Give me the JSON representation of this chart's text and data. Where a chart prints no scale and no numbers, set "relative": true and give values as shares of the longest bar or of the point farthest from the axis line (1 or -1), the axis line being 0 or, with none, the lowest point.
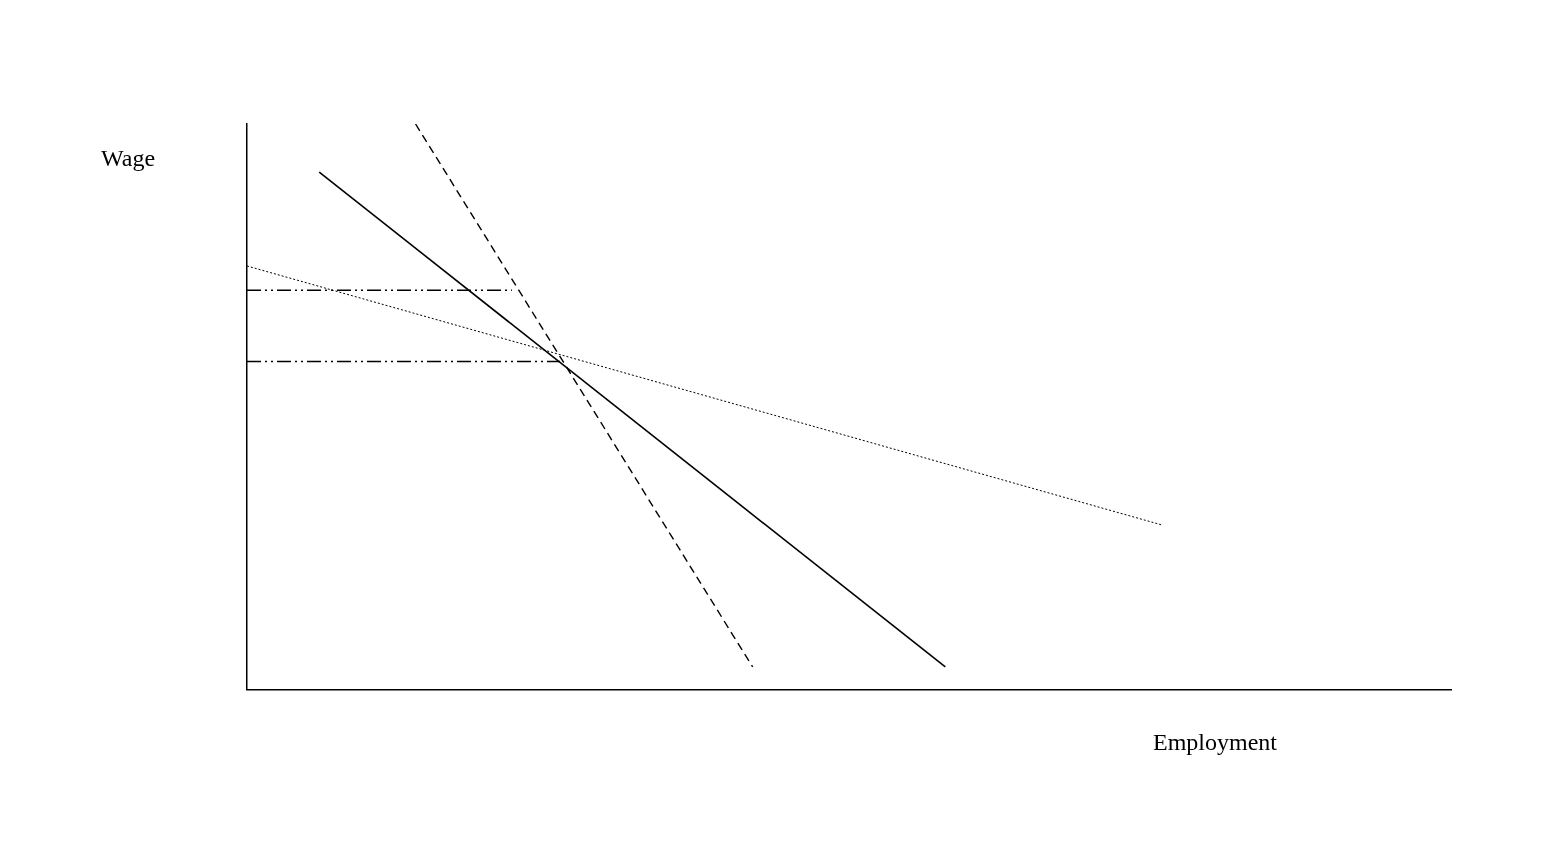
{
  "chart_data": {
    "type": "line",
    "relative": true,
    "xlabel": "Employment",
    "ylabel": "Wage",
    "grid": false,
    "legend": false,
    "marker": "none",
    "categories": [
      null,
      null,
      null,
      null,
      null,
      null,
      null,
      null,
      null,
      null,
      null,
      null,
      null,
      null,
      null,
      null,
      null,
      null,
      null,
      null,
      null,
      null,
      null,
      null,
      null,
      null,
      null,
      null,
      null,
      null,
      null,
      null,
      null,
      null,
      null,
      null,
      null,
      null,
      null,
      null,
      null,
      null,
      null,
      null,
      null,
      null,
      null,
      null,
      null,
      null,
      null,
      null,
      null,
      null,
      null,
      null,
      null,
      null,
      null,
      null,
      null,
      null,
      null,
      null,
      null,
      null,
      null,
      null,
      null,
      null,
      null,
      null,
      null,
      null,
      null,
      null,
      null,
      null,
      null,
      null,
      null,
      null,
      null,
      null,
      null,
      null,
      null,
      null,
      null,
      null,
      null,
      null,
      null,
      null,
      null,
      null,
      null,
      null,
      null,
      null,
      null
    ],
    "series": [
      {
        "color": "#000000",
        "line_style": "solid",
        "values": [
          null,
          null,
          null,
          null,
          null,
          null,
          0.915,
          null,
          null,
          null,
          null,
          null,
          null,
          null,
          null,
          null,
          null,
          null,
          null,
          null,
          null,
          null,
          null,
          null,
          null,
          null,
          null,
          null,
          null,
          null,
          null,
          null,
          null,
          null,
          null,
          null,
          null,
          null,
          null,
          null,
          null,
          null,
          null,
          null,
          null,
          null,
          null,
          null,
          null,
          null,
          null,
          null,
          null,
          null,
          null,
          null,
          null,
          null,
          0.04,
          null,
          null,
          null,
          null,
          null,
          null,
          null,
          null,
          null,
          null,
          null,
          null,
          null,
          null,
          null,
          null,
          null,
          null,
          null,
          null,
          null,
          null,
          null,
          null,
          null,
          null,
          null,
          null,
          null,
          null,
          null,
          null,
          null,
          null,
          null,
          null,
          null,
          null,
          null,
          null,
          null,
          null
        ]
      },
      {
        "color": "#000000",
        "line_style": "dashed",
        "values": [
          null,
          null,
          null,
          null,
          null,
          null,
          null,
          null,
          null,
          null,
          null,
          null,
          null,
          null,
          1.0,
          null,
          null,
          null,
          null,
          null,
          null,
          null,
          null,
          null,
          null,
          null,
          null,
          null,
          null,
          null,
          null,
          null,
          null,
          null,
          null,
          null,
          null,
          null,
          null,
          null,
          null,
          null,
          0.04,
          null,
          null,
          null,
          null,
          null,
          null,
          null,
          null,
          null,
          null,
          null,
          null,
          null,
          null,
          null,
          null,
          null,
          null,
          null,
          null,
          null,
          null,
          null,
          null,
          null,
          null,
          null,
          null,
          null,
          null,
          null,
          null,
          null,
          null,
          null,
          null,
          null,
          null,
          null,
          null,
          null,
          null,
          null,
          null,
          null,
          null,
          null,
          null,
          null,
          null,
          null,
          null,
          null,
          null,
          null,
          null,
          null,
          null
        ]
      },
      {
        "color": "#000000",
        "line_style": "dotted",
        "values": [
          0.749,
          null,
          null,
          null,
          null,
          null,
          null,
          null,
          null,
          null,
          null,
          null,
          null,
          null,
          null,
          null,
          null,
          null,
          null,
          null,
          null,
          null,
          null,
          null,
          null,
          null,
          null,
          null,
          null,
          null,
          null,
          null,
          null,
          null,
          null,
          null,
          null,
          null,
          null,
          null,
          null,
          null,
          null,
          null,
          null,
          null,
          null,
          null,
          null,
          null,
          null,
          null,
          null,
          null,
          null,
          null,
          null,
          null,
          null,
          null,
          null,
          null,
          null,
          null,
          null,
          null,
          null,
          null,
          null,
          null,
          null,
          null,
          null,
          null,
          null,
          null,
          0.291,
          null,
          null,
          null,
          null,
          null,
          null,
          null,
          null,
          null,
          null,
          null,
          null,
          null,
          null,
          null,
          null,
          null,
          null,
          null,
          null,
          null,
          null,
          null,
          null
        ]
      },
      {
        "color": "#000000",
        "line_style": "dashdot",
        "values": [
          0.706,
          null,
          null,
          null,
          null,
          null,
          null,
          null,
          null,
          null,
          null,
          null,
          null,
          null,
          null,
          null,
          null,
          null,
          null,
          null,
          null,
          null,
          0.706,
          null,
          null,
          null,
          null,
          null,
          null,
          null,
          null,
          null,
          null,
          null,
          null,
          null,
          null,
          null,
          null,
          null,
          null,
          null,
          null,
          null,
          null,
          null,
          null,
          null,
          null,
          null,
          null,
          null,
          null,
          null,
          null,
          null,
          null,
          null,
          null,
          null,
          null,
          null,
          null,
          null,
          null,
          null,
          null,
          null,
          null,
          null,
          null,
          null,
          null,
          null,
          null,
          null,
          null,
          null,
          null,
          null,
          null,
          null,
          null,
          null,
          null,
          null,
          null,
          null,
          null,
          null,
          null,
          null,
          null,
          null,
          null,
          null,
          null,
          null,
          null,
          null,
          null
        ]
      },
      {
        "color": "#000000",
        "line_style": "dashdot",
        "values": [
          0.58,
          null,
          null,
          null,
          null,
          null,
          null,
          null,
          null,
          null,
          null,
          null,
          null,
          null,
          null,
          null,
          null,
          null,
          null,
          null,
          null,
          null,
          null,
          null,
          null,
          null,
          0.58,
          null,
          null,
          null,
          null,
          null,
          null,
          null,
          null,
          null,
          null,
          null,
          null,
          null,
          null,
          null,
          null,
          null,
          null,
          null,
          null,
          null,
          null,
          null,
          null,
          null,
          null,
          null,
          null,
          null,
          null,
          null,
          null,
          null,
          null,
          null,
          null,
          null,
          null,
          null,
          null,
          null,
          null,
          null,
          null,
          null,
          null,
          null,
          null,
          null,
          null,
          null,
          null,
          null,
          null,
          null,
          null,
          null,
          null,
          null,
          null,
          null,
          null,
          null,
          null,
          null,
          null,
          null,
          null,
          null,
          null,
          null,
          null,
          null,
          null
        ]
      }
    ]
  }
}
